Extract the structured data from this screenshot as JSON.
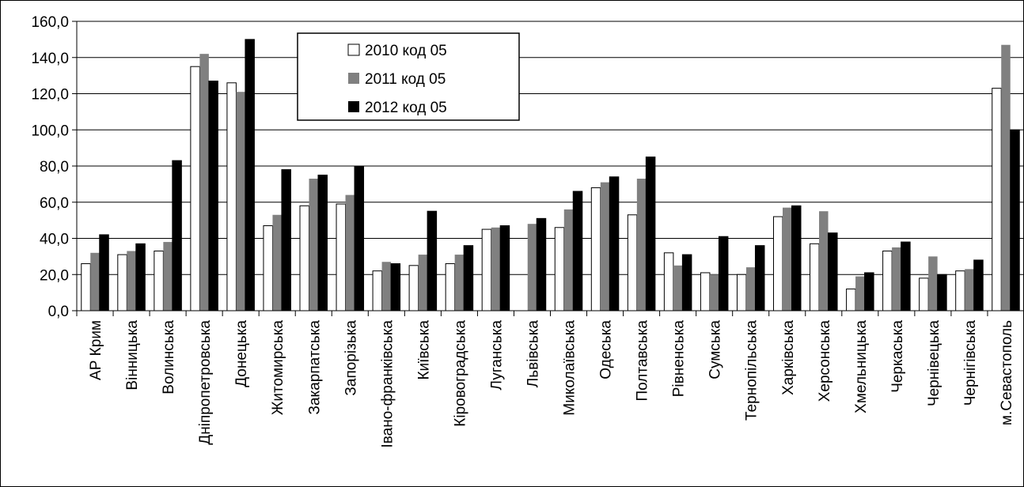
{
  "chart_data": {
    "type": "bar",
    "title": "",
    "xlabel": "",
    "ylabel": "",
    "ylim": [
      0,
      160
    ],
    "yticks": [
      "0,0",
      "20,0",
      "40,0",
      "60,0",
      "80,0",
      "100,0",
      "120,0",
      "140,0",
      "160,0"
    ],
    "grid": true,
    "legend_position": "top-center",
    "categories": [
      "АР Крим",
      "Вінницька",
      "Волинська",
      "Дніпропетровська",
      "Донецька",
      "Житомирська",
      "Закарпатська",
      "Запорізька",
      "Івано-франківська",
      "Київська",
      "Кіровоградська",
      "Луганська",
      "Львівська",
      "Миколаївська",
      "Одеська",
      "Полтавська",
      "Рівненська",
      "Сумська",
      "Тернопільська",
      "Харківська",
      "Херсонська",
      "Хмельницька",
      "Черкаська",
      "Чернівецька",
      "Чернігівська",
      "м.Севастополь"
    ],
    "series": [
      {
        "name": "2010 код 05",
        "color": "#ffffff",
        "values": [
          26,
          31,
          33,
          135,
          126,
          47,
          58,
          59,
          22,
          25,
          26,
          45,
          0,
          46,
          68,
          53,
          32,
          21,
          20,
          52,
          37,
          12,
          33,
          18,
          22,
          123
        ]
      },
      {
        "name": "2011 код 05",
        "color": "#808080",
        "values": [
          32,
          33,
          38,
          142,
          121,
          53,
          73,
          64,
          27,
          31,
          31,
          46,
          48,
          56,
          71,
          73,
          25,
          20,
          24,
          57,
          55,
          19,
          35,
          30,
          23,
          147
        ]
      },
      {
        "name": "2012 код 05",
        "color": "#000000",
        "values": [
          42,
          37,
          83,
          127,
          150,
          78,
          75,
          80,
          26,
          55,
          36,
          47,
          51,
          66,
          74,
          85,
          31,
          41,
          36,
          58,
          43,
          21,
          38,
          20,
          28,
          100
        ]
      }
    ]
  }
}
